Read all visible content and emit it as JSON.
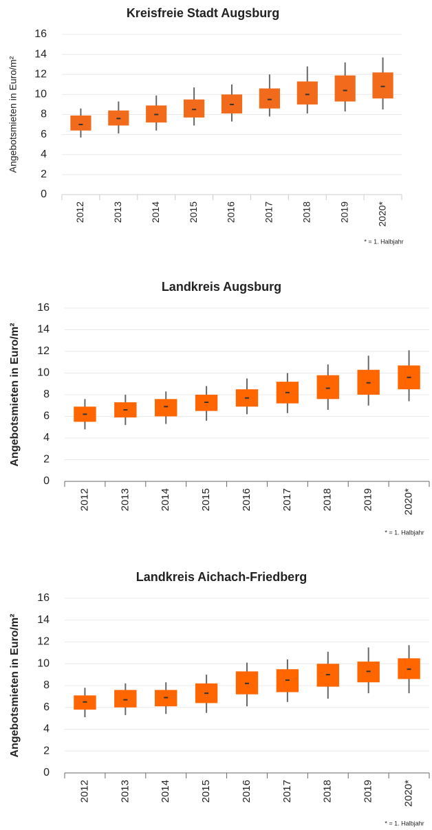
{
  "chart_data": [
    {
      "type": "box",
      "title": "Kreisfreie Stadt Augsburg",
      "y_label": "Angebotsmieten in Euro/m²",
      "note": "* = 1. Halbjahr",
      "categories": [
        "2012",
        "2013",
        "2014",
        "2015",
        "2016",
        "2017",
        "2018",
        "2019",
        "2020*"
      ],
      "whislo": [
        5.7,
        6.1,
        6.4,
        6.9,
        7.3,
        7.8,
        8.1,
        8.3,
        8.5
      ],
      "q1": [
        6.4,
        6.9,
        7.2,
        7.7,
        8.1,
        8.6,
        9.0,
        9.3,
        9.6
      ],
      "median": [
        7.0,
        7.6,
        8.0,
        8.5,
        9.0,
        9.5,
        10.0,
        10.4,
        10.8
      ],
      "q3": [
        7.9,
        8.4,
        8.9,
        9.5,
        10.0,
        10.6,
        11.3,
        11.9,
        12.2
      ],
      "whishi": [
        8.6,
        9.3,
        9.9,
        10.7,
        11.0,
        12.0,
        12.8,
        13.2,
        13.7
      ],
      "color": "#f26a1b",
      "ylim": [
        0,
        16
      ],
      "yticks": [
        0,
        2,
        4,
        6,
        8,
        10,
        12,
        14,
        16
      ],
      "grid": true
    },
    {
      "type": "box",
      "title": "Landkreis Augsburg",
      "y_label": "Angebotsmieten in Euro/m²",
      "note": "* = 1. Halbjahr",
      "categories": [
        "2012",
        "2013",
        "2014",
        "2015",
        "2016",
        "2017",
        "2018",
        "2019",
        "2020*"
      ],
      "whislo": [
        4.8,
        5.2,
        5.3,
        5.6,
        6.2,
        6.3,
        6.6,
        7.0,
        7.4
      ],
      "q1": [
        5.5,
        5.9,
        6.0,
        6.5,
        6.9,
        7.2,
        7.6,
        8.0,
        8.5
      ],
      "median": [
        6.2,
        6.6,
        6.9,
        7.3,
        7.7,
        8.2,
        8.6,
        9.1,
        9.6
      ],
      "q3": [
        6.9,
        7.3,
        7.6,
        8.0,
        8.5,
        9.2,
        9.8,
        10.3,
        10.7
      ],
      "whishi": [
        7.6,
        8.0,
        8.3,
        8.8,
        9.5,
        10.0,
        10.8,
        11.6,
        12.1
      ],
      "color": "#ff6600",
      "ylim": [
        0,
        16
      ],
      "yticks": [
        0,
        2,
        4,
        6,
        8,
        10,
        12,
        14,
        16
      ],
      "grid": true
    },
    {
      "type": "box",
      "title": "Landkreis Aichach-Friedberg",
      "y_label": "Angebotsmieten in Euro/m²",
      "note": "* = 1. Halbjahr",
      "categories": [
        "2012",
        "2013",
        "2014",
        "2015",
        "2016",
        "2017",
        "2018",
        "2019",
        "2020*"
      ],
      "whislo": [
        5.1,
        5.3,
        5.4,
        5.5,
        6.1,
        6.5,
        6.8,
        7.3,
        7.3
      ],
      "q1": [
        5.8,
        6.0,
        6.1,
        6.4,
        7.2,
        7.4,
        7.9,
        8.3,
        8.6
      ],
      "median": [
        6.5,
        6.7,
        6.9,
        7.3,
        8.2,
        8.5,
        9.0,
        9.3,
        9.5
      ],
      "q3": [
        7.1,
        7.6,
        7.6,
        8.2,
        9.3,
        9.5,
        10.0,
        10.2,
        10.5
      ],
      "whishi": [
        7.8,
        8.2,
        8.3,
        9.0,
        10.1,
        10.4,
        11.1,
        11.5,
        11.7
      ],
      "color": "#ff6600",
      "ylim": [
        0,
        16
      ],
      "yticks": [
        0,
        2,
        4,
        6,
        8,
        10,
        12,
        14,
        16
      ],
      "grid": true
    }
  ]
}
